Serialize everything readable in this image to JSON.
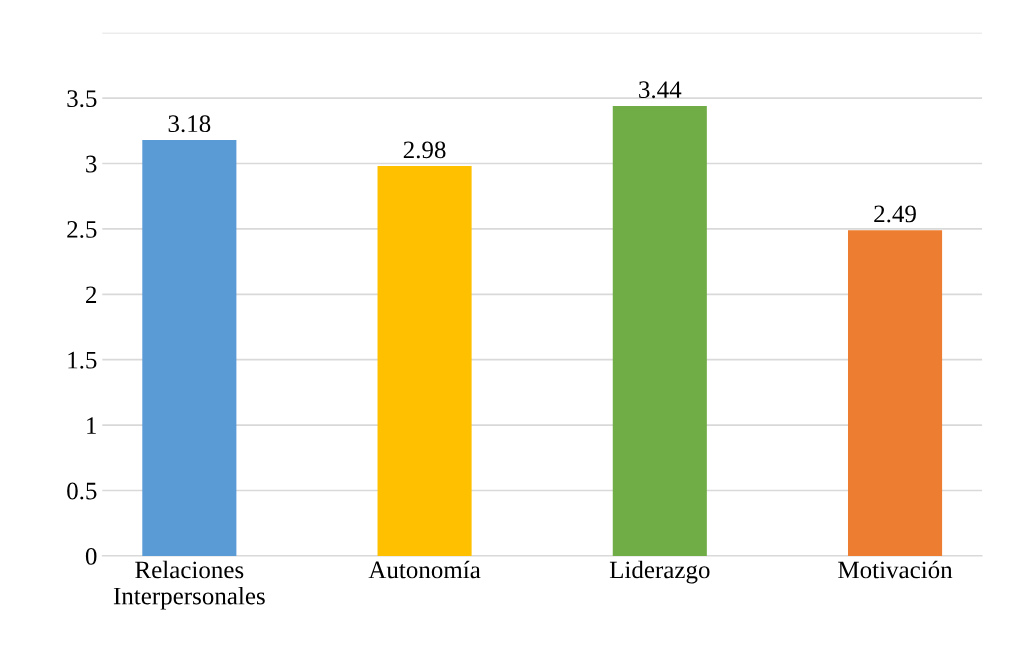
{
  "chart_data": {
    "type": "bar",
    "categories": [
      "Relaciones\nInterpersonales",
      "Autonomía",
      "Liderazgo",
      "Motivación"
    ],
    "values": [
      3.18,
      2.98,
      3.44,
      2.49
    ],
    "colors": [
      "#5b9bd5",
      "#ffc000",
      "#70ad47",
      "#ed7d31"
    ],
    "ylim": [
      0,
      4
    ],
    "yticks": [
      0,
      0.5,
      1,
      1.5,
      2,
      2.5,
      3,
      3.5,
      {
        "value": 4,
        "label": null
      }
    ],
    "grid": "y",
    "data_labels": true,
    "legend": false
  }
}
